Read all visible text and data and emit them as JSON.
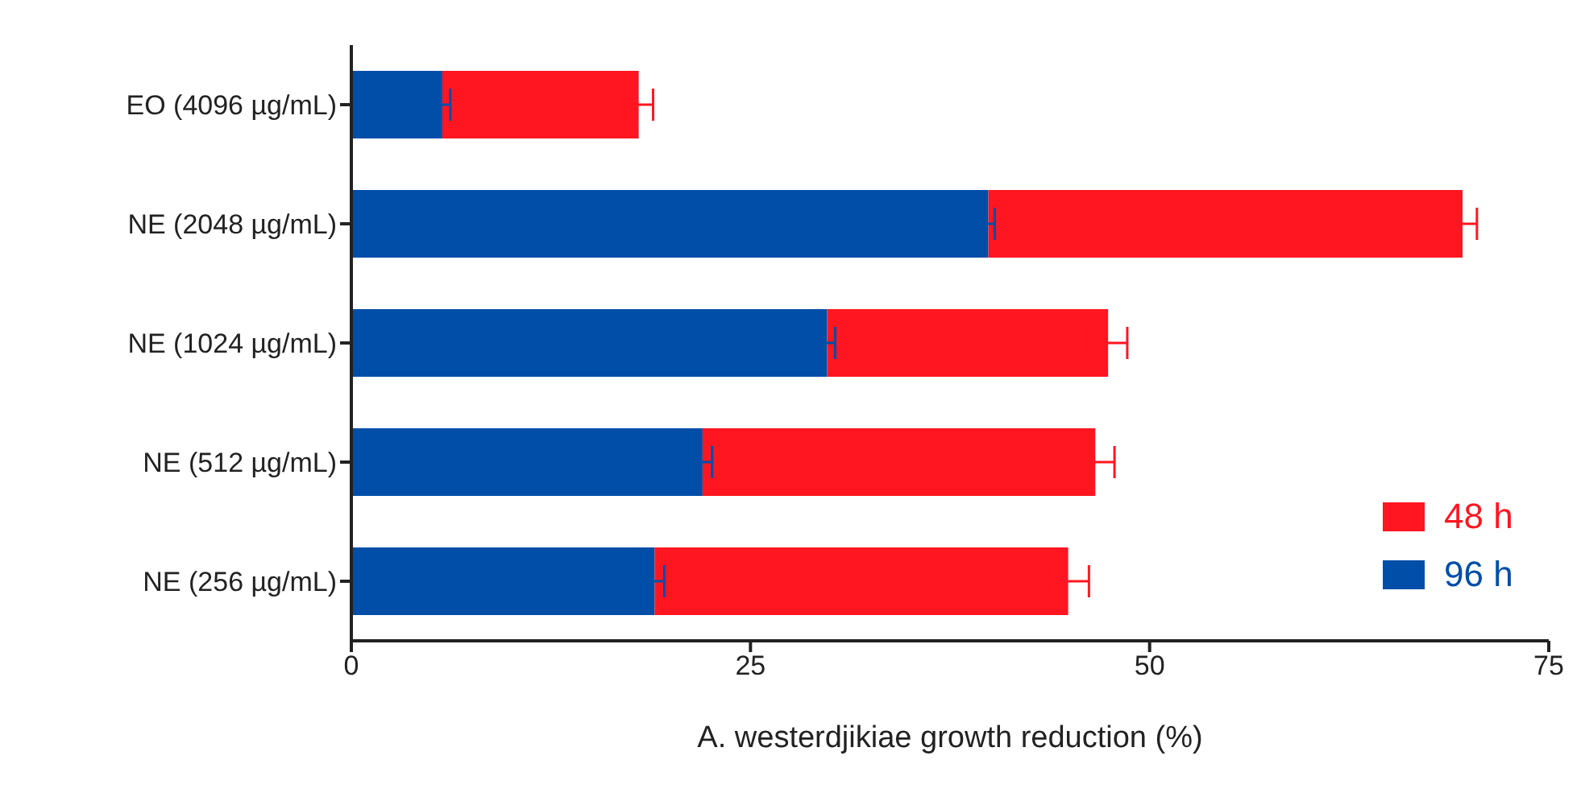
{
  "chart_data": {
    "type": "bar",
    "orientation": "horizontal",
    "stacked": true,
    "categories": [
      "EO (4096 µg/mL)",
      "NE (2048 µg/mL)",
      "NE (1024 µg/mL)",
      "NE (512 µg/mL)",
      "NE (256 µg/mL)"
    ],
    "series": [
      {
        "name": "96 h",
        "color": "#004ea8",
        "values": [
          5.7,
          39.9,
          29.8,
          22.0,
          19.0
        ],
        "errors": [
          0.5,
          0.4,
          0.5,
          0.6,
          0.6
        ]
      },
      {
        "name": "48 h",
        "color": "#ff1620",
        "values": [
          12.3,
          29.7,
          17.6,
          24.6,
          25.9
        ],
        "errors": [
          0.9,
          0.9,
          1.2,
          1.2,
          1.3
        ]
      }
    ],
    "xlabel": "A. westerdjikiae growth reduction (%)",
    "xlim": [
      0,
      75
    ],
    "xticks": [
      0,
      25,
      50,
      75
    ],
    "grid": false,
    "legend": "bottom right"
  }
}
